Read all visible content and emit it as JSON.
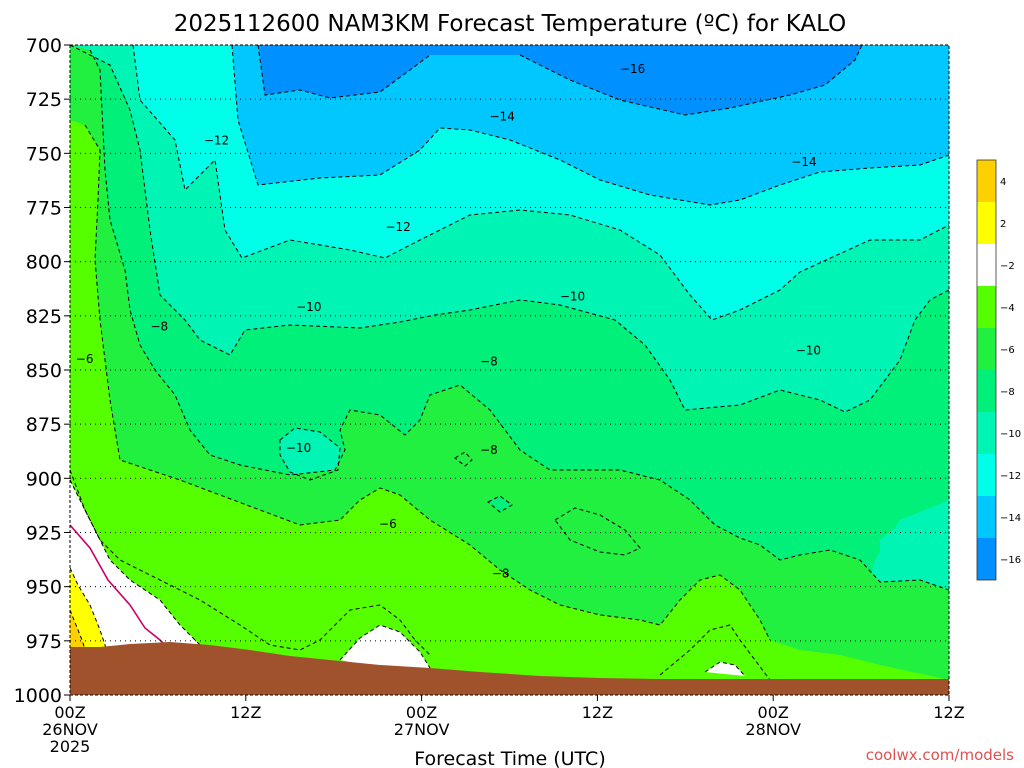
{
  "chart_data": {
    "type": "heatmap",
    "title": "2025112600 NAM3KM Forecast Temperature (ºC) for KALO",
    "xlabel": "Forecast Time (UTC)",
    "ylabel": "",
    "credit": "coolwx.com/models",
    "y_axis": {
      "reversed": true,
      "range": [
        1000,
        700
      ],
      "ticks": [
        "700",
        "725",
        "750",
        "775",
        "800",
        "825",
        "850",
        "875",
        "900",
        "925",
        "950",
        "975",
        "1000"
      ]
    },
    "x_axis": {
      "range_hours": [
        0,
        60
      ],
      "ticks": [
        {
          "h": 0,
          "line1": "00Z",
          "line2": "26NOV",
          "line3": "2025"
        },
        {
          "h": 12,
          "line1": "12Z",
          "line2": "",
          "line3": ""
        },
        {
          "h": 24,
          "line1": "00Z",
          "line2": "27NOV",
          "line3": ""
        },
        {
          "h": 36,
          "line1": "12Z",
          "line2": "",
          "line3": ""
        },
        {
          "h": 48,
          "line1": "00Z",
          "line2": "28NOV",
          "line3": ""
        },
        {
          "h": 60,
          "line1": "12Z",
          "line2": "",
          "line3": ""
        }
      ]
    },
    "grid": true,
    "colorbar": {
      "placement": "right",
      "labels": [
        "4",
        "2",
        "−2",
        "−4",
        "−6",
        "−8",
        "−10",
        "−12",
        "−14",
        "−16"
      ],
      "colors": [
        "#ffd000",
        "#ffff00",
        "#ffffff",
        "#55ff00",
        "#22f040",
        "#00f07a",
        "#00f5b4",
        "#00ffe8",
        "#00c8ff",
        "#0090ff"
      ]
    },
    "contour_labels": [
      {
        "text": "−6",
        "h": 1.0,
        "p": 845
      },
      {
        "text": "−8",
        "h": 6.1,
        "p": 830
      },
      {
        "text": "−12",
        "h": 10.0,
        "p": 744
      },
      {
        "text": "−10",
        "h": 16.3,
        "p": 821
      },
      {
        "text": "−10",
        "h": 15.6,
        "p": 886
      },
      {
        "text": "−12",
        "h": 22.4,
        "p": 784
      },
      {
        "text": "−14",
        "h": 29.5,
        "p": 733
      },
      {
        "text": "−16",
        "h": 38.4,
        "p": 711
      },
      {
        "text": "−8",
        "h": 28.6,
        "p": 846
      },
      {
        "text": "−8",
        "h": 28.6,
        "p": 887
      },
      {
        "text": "−6",
        "h": 21.7,
        "p": 921
      },
      {
        "text": "−8",
        "h": 29.4,
        "p": 944
      },
      {
        "text": "−10",
        "h": 34.3,
        "p": 816
      },
      {
        "text": "−10",
        "h": 50.4,
        "p": 841
      },
      {
        "text": "−14",
        "h": 50.1,
        "p": 754
      }
    ]
  }
}
